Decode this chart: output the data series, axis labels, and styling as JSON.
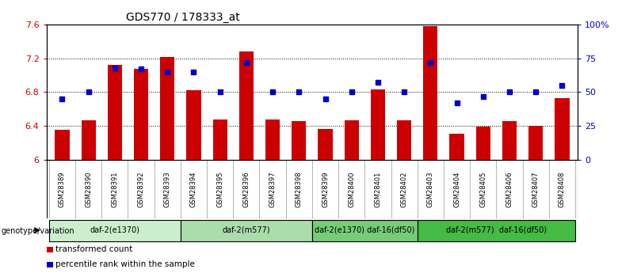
{
  "title": "GDS770 / 178333_at",
  "samples": [
    "GSM28389",
    "GSM28390",
    "GSM28391",
    "GSM28392",
    "GSM28393",
    "GSM28394",
    "GSM28395",
    "GSM28396",
    "GSM28397",
    "GSM28398",
    "GSM28399",
    "GSM28400",
    "GSM28401",
    "GSM28402",
    "GSM28403",
    "GSM28404",
    "GSM28405",
    "GSM28406",
    "GSM28407",
    "GSM28408"
  ],
  "bar_values": [
    6.35,
    6.47,
    7.12,
    7.08,
    7.22,
    6.82,
    6.48,
    7.28,
    6.48,
    6.46,
    6.36,
    6.47,
    6.83,
    6.47,
    7.58,
    6.31,
    6.39,
    6.46,
    6.4,
    6.73
  ],
  "dot_values": [
    45,
    50,
    68,
    67,
    65,
    65,
    50,
    72,
    50,
    50,
    45,
    50,
    57,
    50,
    72,
    42,
    47,
    50,
    50,
    55
  ],
  "ylim_left": [
    6.0,
    7.6
  ],
  "ylim_right": [
    0,
    100
  ],
  "yticks_left": [
    6.0,
    6.4,
    6.8,
    7.2,
    7.6
  ],
  "ytick_labels_left": [
    "6",
    "6.4",
    "6.8",
    "7.2",
    "7.6"
  ],
  "yticks_right": [
    0,
    25,
    50,
    75,
    100
  ],
  "ytick_labels_right": [
    "0",
    "25",
    "50",
    "75",
    "100%"
  ],
  "bar_color": "#cc0000",
  "dot_color": "#0000cc",
  "bar_bottom": 6.0,
  "genotype_groups": [
    {
      "label": "daf-2(e1370)",
      "start": 0,
      "end": 5
    },
    {
      "label": "daf-2(m577)",
      "start": 5,
      "end": 10
    },
    {
      "label": "daf-2(e1370) daf-16(df50)",
      "start": 10,
      "end": 14
    },
    {
      "label": "daf-2(m577)  daf-16(df50)",
      "start": 14,
      "end": 20
    }
  ],
  "grp_colors": [
    "#cceecc",
    "#aaddaa",
    "#77cc77",
    "#44bb44"
  ],
  "genotype_label": "genotype/variation",
  "legend_items": [
    {
      "label": "transformed count",
      "color": "#cc0000"
    },
    {
      "label": "percentile rank within the sample",
      "color": "#0000cc"
    }
  ],
  "bg_color": "#ffffff",
  "sample_band_color": "#c8c8c8",
  "sample_divider_color": "#999999"
}
